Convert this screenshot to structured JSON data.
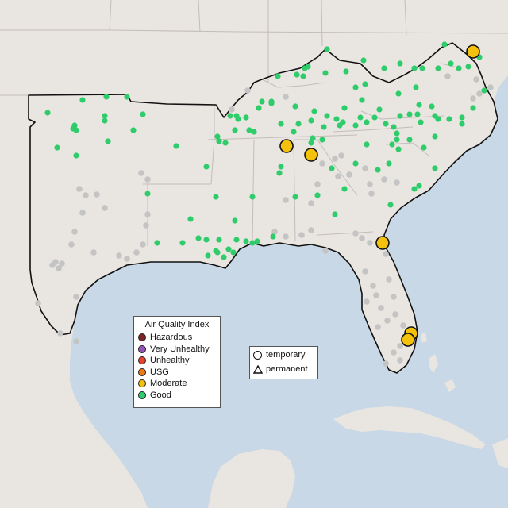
{
  "colors": {
    "water": "#c9d8e6",
    "land": "#e9e5e1",
    "land_south": "#ede7de",
    "boundary": "#111111",
    "state_lines": "#c3bdb8",
    "good": "#2fcc6c",
    "moderate": "#f4c20d",
    "usg": "#ee7a12",
    "unhealthy": "#e8432f",
    "very_unhealthy": "#9653b8",
    "hazardous": "#7e2429",
    "no_data": "#c4c4c4"
  },
  "legend_aqi": {
    "title": "Air Quality Index",
    "items": [
      {
        "label": "Hazardous",
        "color": "#7e2429"
      },
      {
        "label": "Very Unhealthy",
        "color": "#9653b8"
      },
      {
        "label": "Unhealthy",
        "color": "#e8432f"
      },
      {
        "label": "USG",
        "color": "#ee7a12"
      },
      {
        "label": "Moderate",
        "color": "#f4c20d"
      },
      {
        "label": "Good",
        "color": "#2fcc6c"
      }
    ]
  },
  "legend_monitor": {
    "items": [
      {
        "label": "temporary",
        "shape": "circle-icon"
      },
      {
        "label": "permanent",
        "shape": "triangle-icon"
      }
    ]
  }
}
